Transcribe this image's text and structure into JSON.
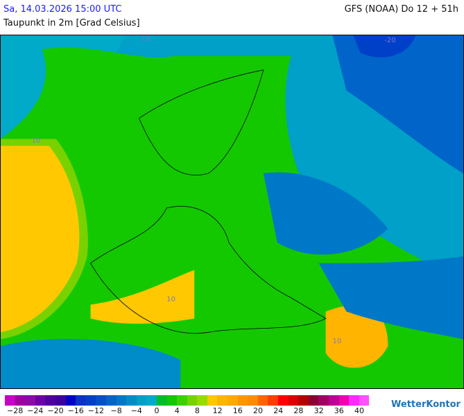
{
  "header": {
    "date": "Sa, 14.03.2026 15:00 UTC",
    "model": "GFS (NOAA) Do 12 + 51h",
    "parameter": "Taupunkt in 2m [Grad Celsius]"
  },
  "legend": {
    "colors": [
      "#c800c8",
      "#a000a0",
      "#8c0aa8",
      "#6e00a8",
      "#5000a0",
      "#3c00a0",
      "#0000c8",
      "#0a32c8",
      "#0040c8",
      "#0050c8",
      "#0064c8",
      "#0078c8",
      "#008cc8",
      "#00a0c8",
      "#00aac8",
      "#00be28",
      "#14c800",
      "#3cd200",
      "#78d200",
      "#96dc00",
      "#ffc800",
      "#ffb400",
      "#ffaa00",
      "#ff9600",
      "#ff8c00",
      "#ff6400",
      "#ff3c00",
      "#ff0000",
      "#dc0000",
      "#b40000",
      "#8c0032",
      "#a00064",
      "#be0096",
      "#f000b4",
      "#ff28ff",
      "#ff50ff"
    ],
    "labels": [
      "−28",
      "−24",
      "−20",
      "−16",
      "−12",
      "−8",
      "−4",
      "0",
      "4",
      "8",
      "12",
      "16",
      "20",
      "24",
      "28",
      "32",
      "36",
      "40"
    ]
  },
  "map": {
    "contour_labels": [
      "-10",
      "-20",
      "10",
      "0"
    ]
  },
  "logo": "WetterKontor"
}
